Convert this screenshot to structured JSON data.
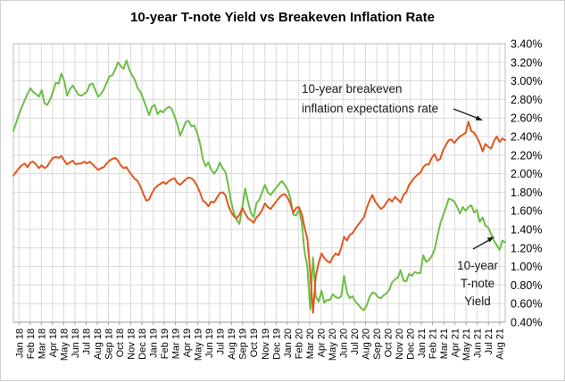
{
  "chart_data": {
    "type": "line",
    "title": "10-year T-note Yield vs Breakeven Inflation Rate",
    "xlabel": "",
    "ylabel": "",
    "ylim": [
      0.4,
      3.4
    ],
    "y_tick_step": 0.2,
    "grid": true,
    "legend_position": "none",
    "y_tick_labels": [
      "3.40%",
      "3.20%",
      "3.00%",
      "2.80%",
      "2.60%",
      "2.40%",
      "2.20%",
      "2.00%",
      "1.80%",
      "1.60%",
      "1.40%",
      "1.20%",
      "1.00%",
      "0.80%",
      "0.60%",
      "0.40%"
    ],
    "x_labels": [
      "Jan 18",
      "Feb 18",
      "Mar 18",
      "Apr 18",
      "May 18",
      "Jun 18",
      "Jul 18",
      "Aug 18",
      "Sep 18",
      "Oct 18",
      "Nov 18",
      "Dec 18",
      "Jan 19",
      "Feb 19",
      "Mar 19",
      "Apr 19",
      "May 19",
      "Jun 19",
      "Jul 19",
      "Aug 19",
      "Sep 19",
      "Oct 19",
      "Nov 19",
      "Dec 19",
      "Jan 20",
      "Feb 20",
      "Mar 20",
      "Apr 20",
      "May 20",
      "Jun 20",
      "Jul 20",
      "Aug 20",
      "Sep 20",
      "Oct 20",
      "Nov 20",
      "Dec 20",
      "Jan 21",
      "Feb 21",
      "Mar 21",
      "Apr 21",
      "May 21",
      "Jun 21",
      "Jul 21",
      "Aug 21"
    ],
    "series": [
      {
        "id": "tnote",
        "name": "10-year T-note Yield",
        "color": "#6cbe45",
        "values": [
          2.46,
          2.55,
          2.64,
          2.72,
          2.79,
          2.86,
          2.92,
          2.88,
          2.86,
          2.83,
          2.9,
          2.76,
          2.74,
          2.8,
          2.88,
          2.98,
          2.97,
          3.08,
          3.0,
          2.84,
          2.91,
          2.95,
          2.9,
          2.85,
          2.84,
          2.86,
          2.88,
          2.96,
          2.97,
          2.9,
          2.83,
          2.86,
          2.91,
          2.98,
          3.05,
          3.06,
          3.12,
          3.2,
          3.16,
          3.13,
          3.22,
          3.12,
          3.06,
          3.01,
          2.92,
          2.88,
          2.8,
          2.72,
          2.63,
          2.72,
          2.74,
          2.64,
          2.68,
          2.66,
          2.7,
          2.72,
          2.7,
          2.62,
          2.53,
          2.41,
          2.48,
          2.56,
          2.57,
          2.51,
          2.52,
          2.44,
          2.33,
          2.16,
          2.08,
          2.12,
          2.04,
          2.0,
          2.04,
          2.12,
          2.06,
          2.02,
          1.88,
          1.7,
          1.58,
          1.5,
          1.46,
          1.64,
          1.84,
          1.7,
          1.58,
          1.53,
          1.68,
          1.72,
          1.8,
          1.88,
          1.8,
          1.77,
          1.81,
          1.85,
          1.89,
          1.92,
          1.88,
          1.83,
          1.74,
          1.56,
          1.55,
          1.61,
          1.48,
          1.16,
          1.0,
          0.54,
          1.1,
          0.68,
          0.62,
          0.74,
          0.61,
          0.64,
          0.64,
          0.7,
          0.67,
          0.66,
          0.68,
          0.9,
          0.72,
          0.66,
          0.68,
          0.62,
          0.59,
          0.55,
          0.53,
          0.58,
          0.67,
          0.72,
          0.71,
          0.67,
          0.66,
          0.69,
          0.71,
          0.75,
          0.83,
          0.86,
          0.88,
          0.96,
          0.85,
          0.84,
          0.92,
          0.9,
          0.94,
          0.93,
          0.93,
          1.12,
          1.05,
          1.07,
          1.11,
          1.18,
          1.32,
          1.46,
          1.55,
          1.63,
          1.73,
          1.72,
          1.7,
          1.64,
          1.57,
          1.64,
          1.6,
          1.64,
          1.66,
          1.58,
          1.61,
          1.48,
          1.53,
          1.44,
          1.42,
          1.35,
          1.28,
          1.23,
          1.18,
          1.28,
          1.26
        ]
      },
      {
        "id": "breakeven",
        "name": "10-year breakeven inflation expectations rate",
        "color": "#e2571e",
        "values": [
          1.98,
          2.02,
          2.06,
          2.09,
          2.11,
          2.07,
          2.12,
          2.13,
          2.1,
          2.06,
          2.09,
          2.06,
          2.08,
          2.13,
          2.17,
          2.18,
          2.17,
          2.19,
          2.14,
          2.1,
          2.12,
          2.14,
          2.1,
          2.11,
          2.11,
          2.13,
          2.11,
          2.13,
          2.1,
          2.07,
          2.04,
          2.06,
          2.07,
          2.11,
          2.14,
          2.16,
          2.17,
          2.14,
          2.09,
          2.06,
          2.07,
          2.02,
          1.98,
          1.94,
          1.92,
          1.86,
          1.78,
          1.71,
          1.72,
          1.79,
          1.84,
          1.87,
          1.89,
          1.91,
          1.89,
          1.92,
          1.94,
          1.95,
          1.9,
          1.88,
          1.91,
          1.94,
          1.96,
          1.95,
          1.92,
          1.87,
          1.8,
          1.71,
          1.69,
          1.65,
          1.7,
          1.69,
          1.74,
          1.79,
          1.8,
          1.77,
          1.66,
          1.59,
          1.54,
          1.52,
          1.56,
          1.63,
          1.57,
          1.52,
          1.5,
          1.47,
          1.53,
          1.56,
          1.61,
          1.68,
          1.64,
          1.62,
          1.66,
          1.7,
          1.74,
          1.77,
          1.78,
          1.74,
          1.68,
          1.58,
          1.63,
          1.64,
          1.57,
          1.42,
          1.3,
          0.95,
          0.5,
          0.9,
          1.04,
          1.14,
          1.09,
          1.06,
          1.04,
          1.1,
          1.14,
          1.12,
          1.2,
          1.32,
          1.28,
          1.34,
          1.36,
          1.41,
          1.45,
          1.49,
          1.53,
          1.63,
          1.71,
          1.77,
          1.7,
          1.66,
          1.62,
          1.64,
          1.69,
          1.73,
          1.7,
          1.75,
          1.72,
          1.69,
          1.77,
          1.8,
          1.88,
          1.92,
          1.96,
          1.99,
          2.01,
          2.07,
          2.1,
          2.1,
          2.17,
          2.21,
          2.14,
          2.16,
          2.25,
          2.31,
          2.36,
          2.37,
          2.33,
          2.37,
          2.4,
          2.42,
          2.44,
          2.56,
          2.46,
          2.44,
          2.39,
          2.33,
          2.24,
          2.32,
          2.29,
          2.27,
          2.35,
          2.4,
          2.34,
          2.38,
          2.36
        ]
      }
    ],
    "annotations": {
      "breakeven": {
        "line1": "10-year breakeven",
        "line2": "inflation expectations rate"
      },
      "tnote": {
        "line1": "10-year",
        "line2": "T-note",
        "line3": "Yield"
      }
    },
    "colors": {
      "gridline": "#d9d9d9",
      "plot_border": "#bdbdbd",
      "axis_line": "#9b9b9b",
      "text": "#000000"
    }
  }
}
